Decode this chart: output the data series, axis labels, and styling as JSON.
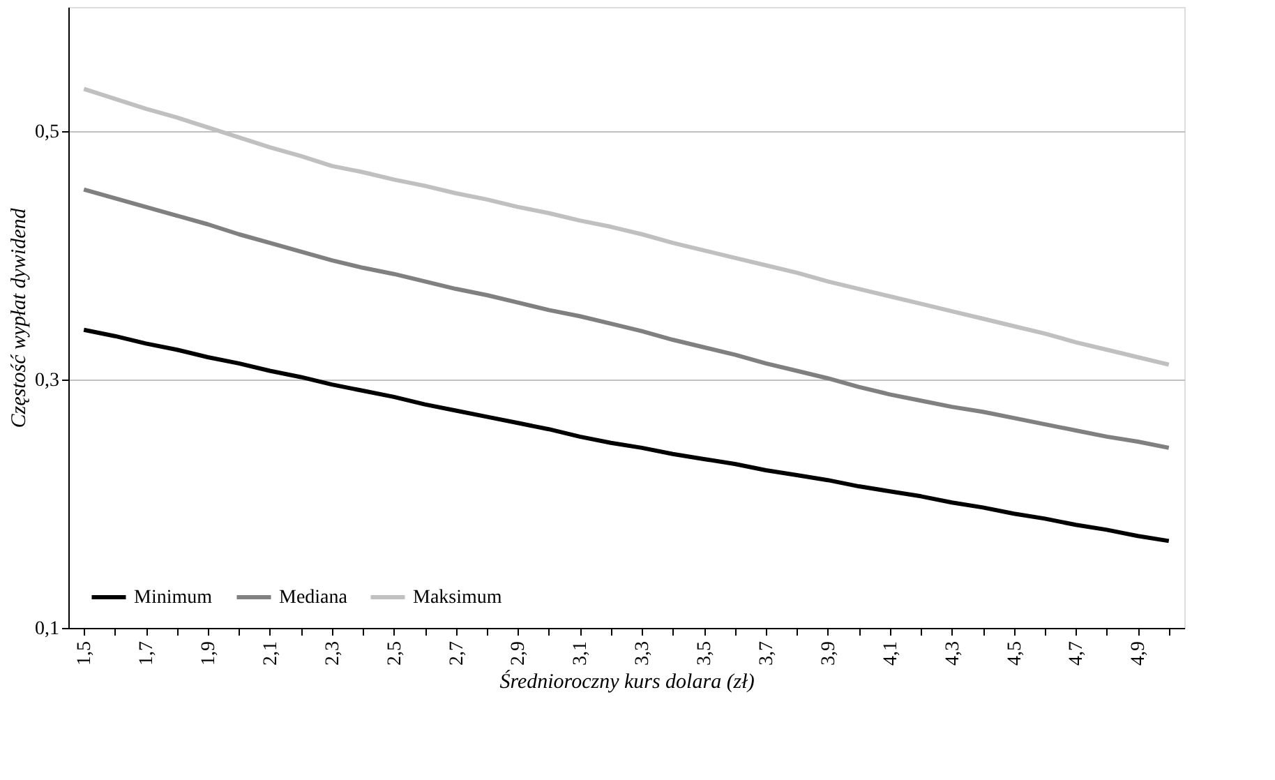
{
  "chart_data": {
    "type": "line",
    "xlabel": "Średnioroczny kurs dolara (zł)",
    "ylabel": "Częstość wypłat dywidend",
    "categories": [
      "1,5",
      null,
      "1,7",
      null,
      "1,9",
      null,
      "2,1",
      null,
      "2,3",
      null,
      "2,5",
      null,
      "2,7",
      null,
      "2,9",
      null,
      "3,1",
      null,
      "3,3",
      null,
      "3,5",
      null,
      "3,7",
      null,
      "3,9",
      null,
      "4,1",
      null,
      "4,3",
      null,
      "4,5",
      null,
      "4,7",
      null,
      "4,9",
      null
    ],
    "series": [
      {
        "name": "Minimum",
        "color": "#000000",
        "values": [
          0.34,
          0.335,
          0.329,
          0.324,
          0.318,
          0.313,
          0.307,
          0.302,
          0.296,
          0.291,
          0.286,
          0.28,
          0.275,
          0.27,
          0.265,
          0.26,
          0.254,
          0.249,
          0.245,
          0.24,
          0.236,
          0.232,
          0.227,
          0.223,
          0.219,
          0.214,
          0.21,
          0.206,
          0.201,
          0.197,
          0.192,
          0.188,
          0.183,
          0.179,
          0.174,
          0.17
        ]
      },
      {
        "name": "Mediana",
        "color": "#808080",
        "values": [
          0.453,
          0.446,
          0.439,
          0.432,
          0.425,
          0.417,
          0.41,
          0.403,
          0.396,
          0.39,
          0.385,
          0.379,
          0.373,
          0.368,
          0.362,
          0.356,
          0.351,
          0.345,
          0.339,
          0.332,
          0.326,
          0.32,
          0.313,
          0.307,
          0.301,
          0.294,
          0.288,
          0.283,
          0.278,
          0.274,
          0.269,
          0.264,
          0.259,
          0.254,
          0.25,
          0.245
        ]
      },
      {
        "name": "Maksimum",
        "color": "#c0c0c0",
        "values": [
          0.534,
          0.526,
          0.518,
          0.511,
          0.503,
          0.495,
          0.487,
          0.48,
          0.472,
          0.467,
          0.461,
          0.456,
          0.45,
          0.445,
          0.439,
          0.434,
          0.428,
          0.423,
          0.417,
          0.41,
          0.404,
          0.398,
          0.392,
          0.386,
          0.379,
          0.373,
          0.367,
          0.361,
          0.355,
          0.349,
          0.343,
          0.337,
          0.33,
          0.324,
          0.318,
          0.312
        ]
      }
    ],
    "ylim": [
      0.1,
      0.6
    ],
    "yticks": [
      {
        "value": 0.1,
        "label": "0,1"
      },
      {
        "value": 0.3,
        "label": "0,3"
      },
      {
        "value": 0.5,
        "label": "0,5"
      }
    ],
    "grid": "y",
    "legend": "bottom left",
    "marker": "none",
    "line_style": "solid"
  }
}
